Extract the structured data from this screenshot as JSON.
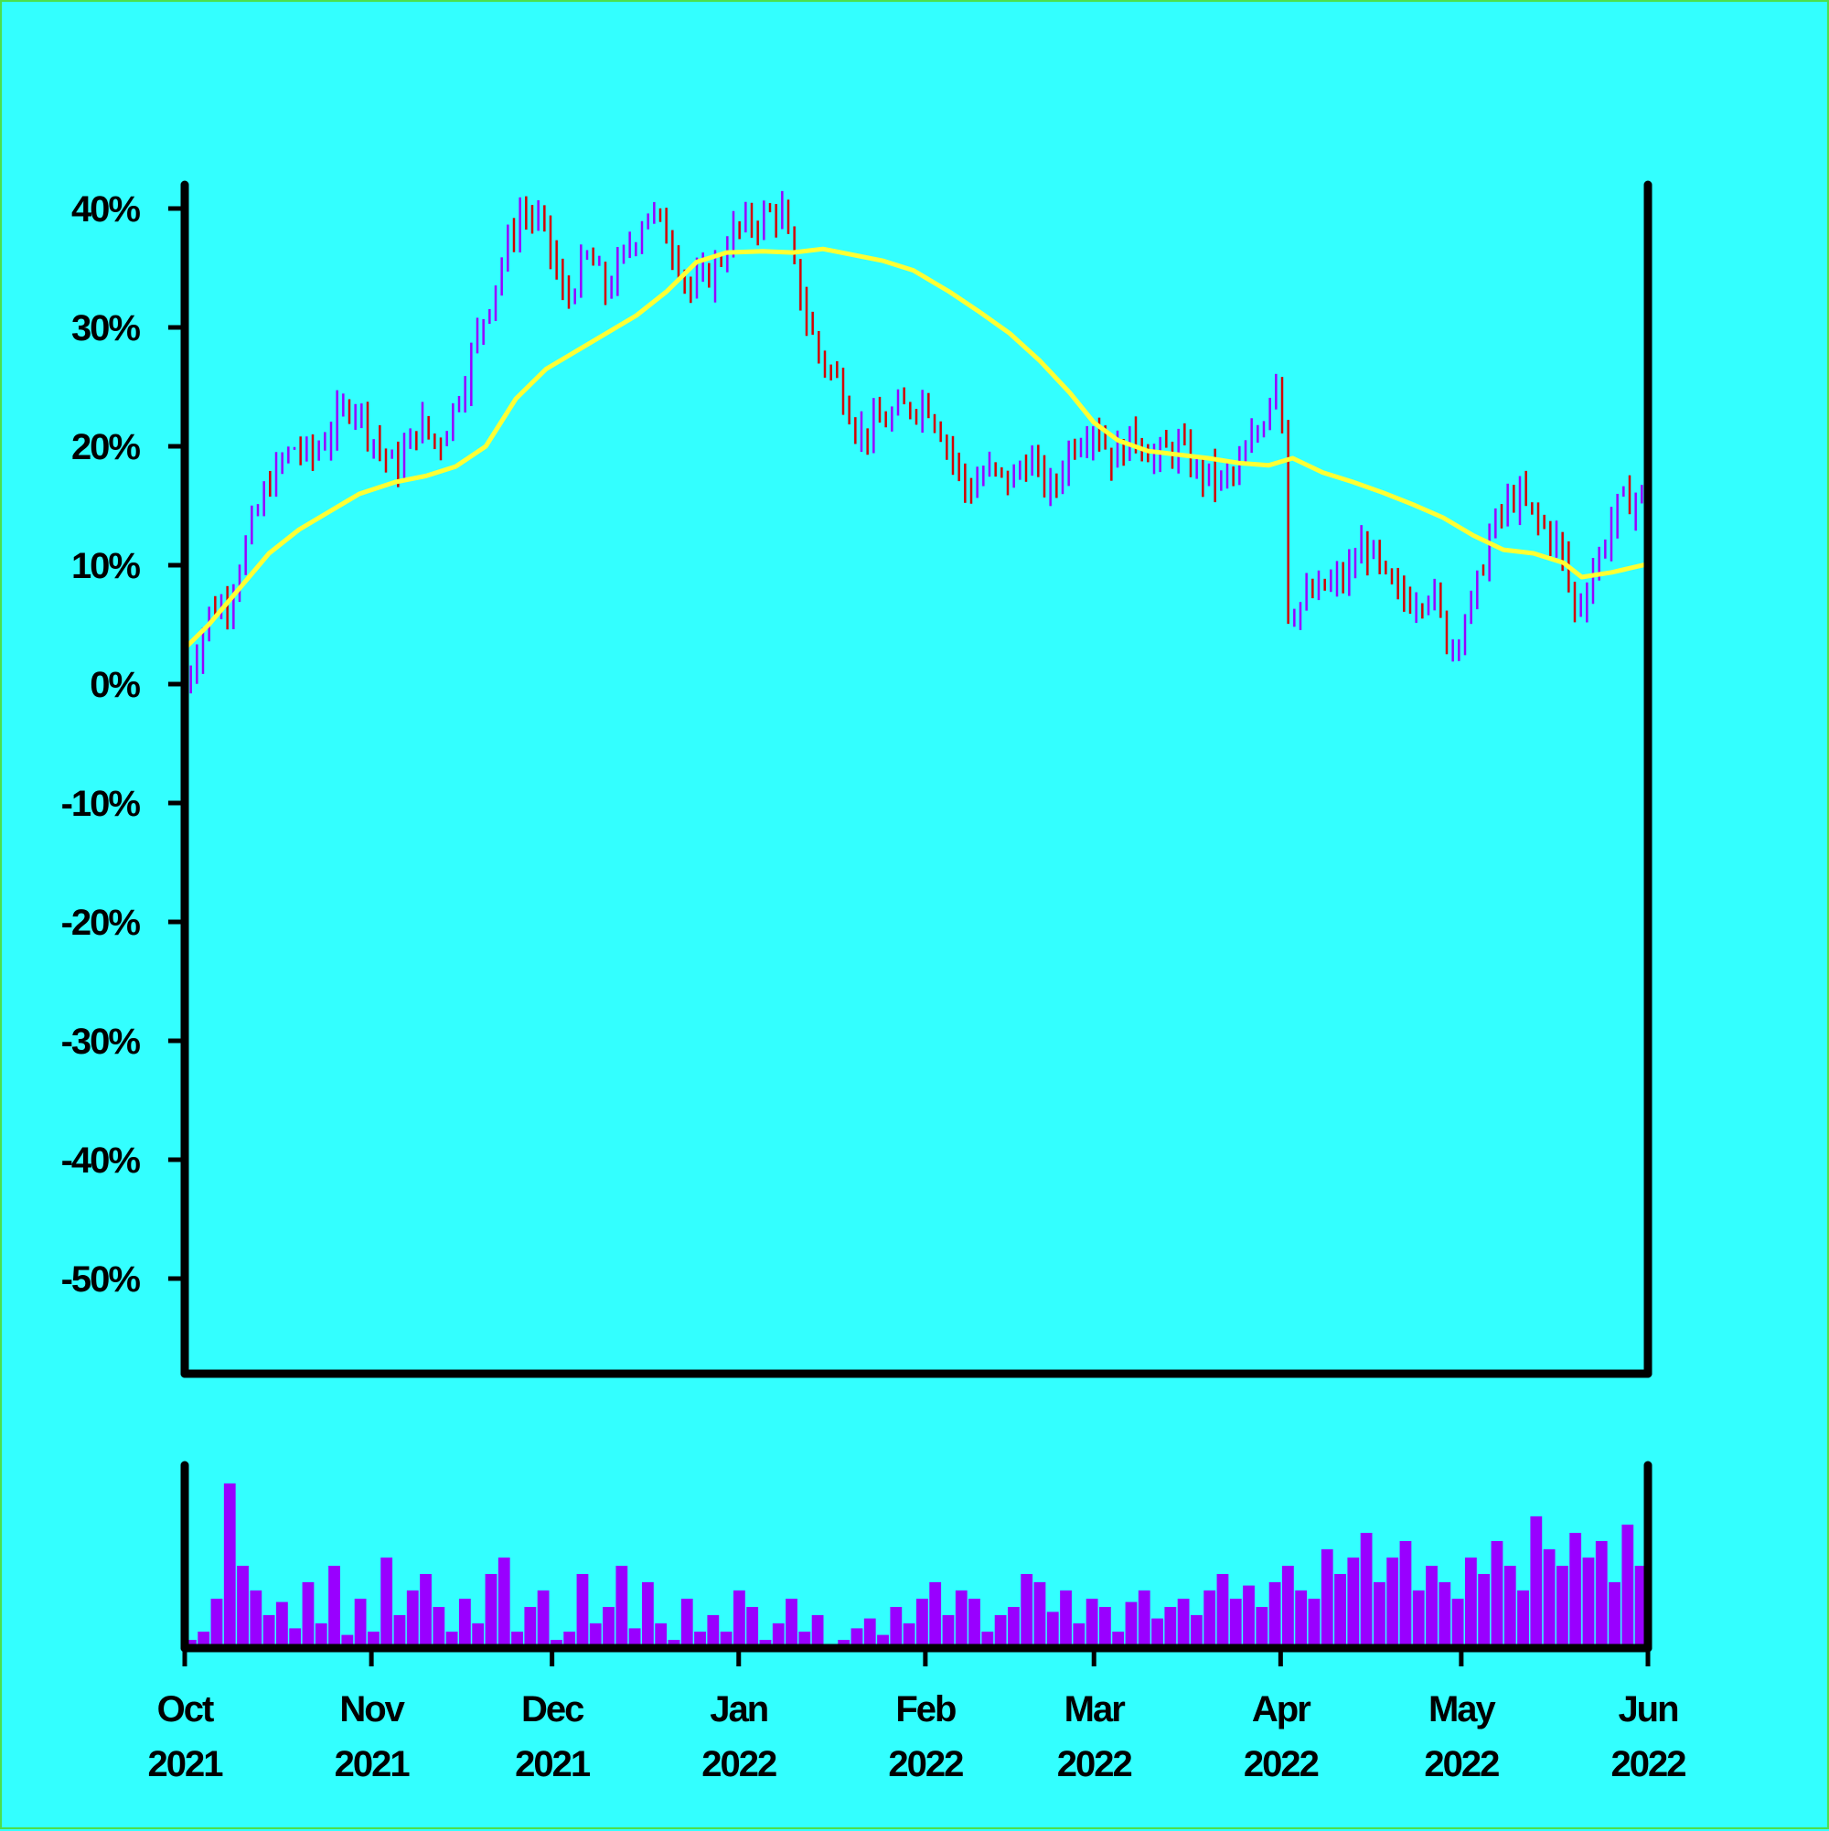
{
  "chart_data": [
    {
      "type": "ohlc",
      "title": "",
      "xlabel": "",
      "ylabel": "",
      "y_unit": "%",
      "ylim": [
        -58,
        42
      ],
      "y_ticks": [
        40,
        30,
        20,
        10,
        0,
        -10,
        -20,
        -30,
        -40,
        -50
      ],
      "y_tick_labels": [
        "40%",
        "30%",
        "20%",
        "10%",
        "0%",
        "-10%",
        "-20%",
        "-30%",
        "-40%",
        "-50%"
      ],
      "x_range": [
        "2021-10-01",
        "2022-06-01"
      ],
      "x_ticks": [
        "2021-10-01",
        "2021-11-01",
        "2021-12-01",
        "2022-01-01",
        "2022-02-01",
        "2022-03-01",
        "2022-04-01",
        "2022-05-01",
        "2022-06-01"
      ],
      "x_tick_labels": [
        [
          "Oct",
          "2021"
        ],
        [
          "Nov",
          "2021"
        ],
        [
          "Dec",
          "2021"
        ],
        [
          "Jan",
          "2022"
        ],
        [
          "Feb",
          "2022"
        ],
        [
          "Mar",
          "2022"
        ],
        [
          "Apr",
          "2022"
        ],
        [
          "May",
          "2022"
        ],
        [
          "Jun",
          "2022"
        ]
      ],
      "close_path": [
        [
          "2021-10-01",
          0
        ],
        [
          "2021-10-05",
          6
        ],
        [
          "2021-10-08",
          7
        ],
        [
          "2021-10-12",
          13
        ],
        [
          "2021-10-15",
          17
        ],
        [
          "2021-10-19",
          20
        ],
        [
          "2021-10-22",
          19
        ],
        [
          "2021-10-26",
          22
        ],
        [
          "2021-10-29",
          24
        ],
        [
          "2021-11-02",
          20
        ],
        [
          "2021-11-05",
          18
        ],
        [
          "2021-11-09",
          22
        ],
        [
          "2021-11-12",
          20
        ],
        [
          "2021-11-16",
          25
        ],
        [
          "2021-11-19",
          30
        ],
        [
          "2021-11-23",
          36
        ],
        [
          "2021-11-26",
          40
        ],
        [
          "2021-11-30",
          38
        ],
        [
          "2021-12-03",
          32
        ],
        [
          "2021-12-07",
          36
        ],
        [
          "2021-12-10",
          33
        ],
        [
          "2021-12-14",
          37
        ],
        [
          "2021-12-17",
          40
        ],
        [
          "2021-12-21",
          37
        ],
        [
          "2021-12-24",
          33
        ],
        [
          "2021-12-28",
          35
        ],
        [
          "2021-12-31",
          38
        ],
        [
          "2022-01-04",
          39
        ],
        [
          "2022-01-08",
          40
        ],
        [
          "2022-01-11",
          33
        ],
        [
          "2022-01-14",
          28
        ],
        [
          "2022-01-18",
          25
        ],
        [
          "2022-01-21",
          21
        ],
        [
          "2022-01-25",
          22
        ],
        [
          "2022-01-28",
          23
        ],
        [
          "2022-02-01",
          24
        ],
        [
          "2022-02-04",
          21
        ],
        [
          "2022-02-08",
          16
        ],
        [
          "2022-02-11",
          18
        ],
        [
          "2022-02-15",
          17
        ],
        [
          "2022-02-18",
          19
        ],
        [
          "2022-02-22",
          16
        ],
        [
          "2022-02-25",
          20
        ],
        [
          "2022-03-01",
          22
        ],
        [
          "2022-03-04",
          19
        ],
        [
          "2022-03-08",
          21
        ],
        [
          "2022-03-11",
          19
        ],
        [
          "2022-03-15",
          20
        ],
        [
          "2022-03-18",
          18
        ],
        [
          "2022-03-22",
          17
        ],
        [
          "2022-03-25",
          18
        ],
        [
          "2022-03-29",
          22
        ],
        [
          "2022-04-01",
          28
        ],
        [
          "2022-04-02",
          6
        ],
        [
          "2022-04-05",
          7
        ],
        [
          "2022-04-08",
          8
        ],
        [
          "2022-04-12",
          9
        ],
        [
          "2022-04-15",
          12
        ],
        [
          "2022-04-19",
          8
        ],
        [
          "2022-04-22",
          7
        ],
        [
          "2022-04-26",
          8
        ],
        [
          "2022-04-29",
          3
        ],
        [
          "2022-05-03",
          7
        ],
        [
          "2022-05-06",
          13
        ],
        [
          "2022-05-10",
          16
        ],
        [
          "2022-05-13",
          14
        ],
        [
          "2022-05-17",
          12
        ],
        [
          "2022-05-20",
          6
        ],
        [
          "2022-05-24",
          11
        ],
        [
          "2022-05-27",
          15
        ],
        [
          "2022-05-31",
          16
        ],
        [
          "2022-06-01",
          14
        ]
      ],
      "moving_average": [
        [
          "2021-10-01",
          3
        ],
        [
          "2021-10-05",
          5
        ],
        [
          "2021-10-10",
          8
        ],
        [
          "2021-10-15",
          11
        ],
        [
          "2021-10-20",
          13
        ],
        [
          "2021-10-25",
          14.5
        ],
        [
          "2021-10-30",
          16
        ],
        [
          "2021-11-05",
          17
        ],
        [
          "2021-11-10",
          17.5
        ],
        [
          "2021-11-15",
          18.3
        ],
        [
          "2021-11-20",
          20
        ],
        [
          "2021-11-25",
          24
        ],
        [
          "2021-11-30",
          26.5
        ],
        [
          "2021-12-05",
          28
        ],
        [
          "2021-12-10",
          29.5
        ],
        [
          "2021-12-15",
          31
        ],
        [
          "2021-12-20",
          33
        ],
        [
          "2021-12-25",
          35.5
        ],
        [
          "2021-12-30",
          36.3
        ],
        [
          "2022-01-05",
          36.4
        ],
        [
          "2022-01-10",
          36.3
        ],
        [
          "2022-01-15",
          36.6
        ],
        [
          "2022-01-20",
          36.1
        ],
        [
          "2022-01-25",
          35.6
        ],
        [
          "2022-01-30",
          34.8
        ],
        [
          "2022-02-05",
          33
        ],
        [
          "2022-02-10",
          31.3
        ],
        [
          "2022-02-15",
          29.5
        ],
        [
          "2022-02-20",
          27.2
        ],
        [
          "2022-02-25",
          24.5
        ],
        [
          "2022-03-01",
          22
        ],
        [
          "2022-03-05",
          20.5
        ],
        [
          "2022-03-10",
          19.6
        ],
        [
          "2022-03-15",
          19.3
        ],
        [
          "2022-03-20",
          19
        ],
        [
          "2022-03-25",
          18.6
        ],
        [
          "2022-03-30",
          18.4
        ],
        [
          "2022-04-03",
          19
        ],
        [
          "2022-04-08",
          17.8
        ],
        [
          "2022-04-13",
          17
        ],
        [
          "2022-04-18",
          16.1
        ],
        [
          "2022-04-23",
          15.1
        ],
        [
          "2022-04-28",
          14
        ],
        [
          "2022-05-03",
          12.5
        ],
        [
          "2022-05-08",
          11.3
        ],
        [
          "2022-05-13",
          11
        ],
        [
          "2022-05-18",
          10.2
        ],
        [
          "2022-05-21",
          9
        ],
        [
          "2022-05-26",
          9.4
        ],
        [
          "2022-06-01",
          10.1
        ]
      ],
      "volume_relative": [
        0.05,
        0.1,
        0.3,
        1.0,
        0.5,
        0.35,
        0.2,
        0.28,
        0.12,
        0.4,
        0.15,
        0.5,
        0.08,
        0.3,
        0.1,
        0.55,
        0.2,
        0.35,
        0.45,
        0.25,
        0.1,
        0.3,
        0.15,
        0.45,
        0.55,
        0.1,
        0.25,
        0.35,
        0.05,
        0.1,
        0.45,
        0.15,
        0.25,
        0.5,
        0.12,
        0.4,
        0.15,
        0.05,
        0.3,
        0.1,
        0.2,
        0.1,
        0.35,
        0.25,
        0.05,
        0.15,
        0.3,
        0.1,
        0.2,
        0.02,
        0.05,
        0.12,
        0.18,
        0.08,
        0.25,
        0.15,
        0.3,
        0.4,
        0.2,
        0.35,
        0.3,
        0.1,
        0.2,
        0.25,
        0.45,
        0.4,
        0.22,
        0.35,
        0.15,
        0.3,
        0.25,
        0.1,
        0.28,
        0.35,
        0.18,
        0.25,
        0.3,
        0.2,
        0.35,
        0.45,
        0.3,
        0.38,
        0.25,
        0.4,
        0.5,
        0.35,
        0.3,
        0.6,
        0.45,
        0.55,
        0.7,
        0.4,
        0.55,
        0.65,
        0.35,
        0.5,
        0.4,
        0.3,
        0.55,
        0.45,
        0.65,
        0.5,
        0.35,
        0.8,
        0.6,
        0.5,
        0.7,
        0.55,
        0.65,
        0.4,
        0.75,
        0.5
      ],
      "grid": false,
      "colors": {
        "background": "#33ffff",
        "bar_up": "#9900ff",
        "bar_down": "#d40000",
        "moving_average": "#ffff33",
        "volume": "#9900ff",
        "axis": "#000000",
        "frame_border": "#4ce04c"
      }
    }
  ]
}
